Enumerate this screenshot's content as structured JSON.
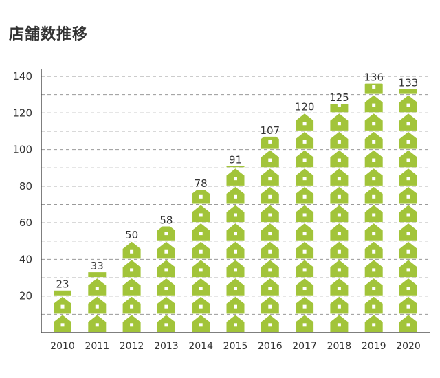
{
  "chart_data": {
    "type": "bar",
    "title": "店舗数推移",
    "xlabel": "",
    "ylabel": "",
    "categories": [
      "2010",
      "2011",
      "2012",
      "2013",
      "2014",
      "2015",
      "2016",
      "2017",
      "2018",
      "2019",
      "2020"
    ],
    "values": [
      23,
      33,
      50,
      58,
      78,
      91,
      107,
      120,
      125,
      136,
      133
    ],
    "ylim": [
      0,
      140
    ],
    "yticks": [
      20,
      40,
      60,
      80,
      100,
      120,
      140
    ],
    "grid": true,
    "bar_color": "#a2c43a",
    "pictogram": "house-icon",
    "pictogram_unit": 10
  }
}
